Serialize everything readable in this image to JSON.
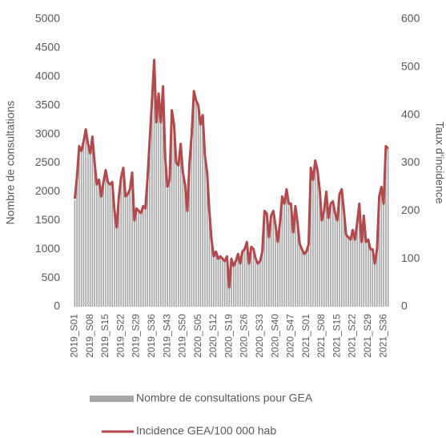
{
  "chart_data": {
    "type": "bar",
    "y_label": "Nombre de consultations",
    "y2_label": "Taux d'incidence",
    "categories": [
      "2019_S01",
      null,
      null,
      null,
      null,
      null,
      null,
      "2019_S08",
      null,
      null,
      null,
      null,
      null,
      null,
      "2019_S15",
      null,
      null,
      null,
      null,
      null,
      null,
      "2019_S22",
      null,
      null,
      null,
      null,
      null,
      null,
      "2019_S29",
      null,
      null,
      null,
      null,
      null,
      null,
      "2019_S36",
      null,
      null,
      null,
      null,
      null,
      null,
      "2019_S43",
      null,
      null,
      null,
      null,
      null,
      null,
      "2019_S50",
      null,
      null,
      null,
      null,
      null,
      null,
      "2020_S05",
      null,
      null,
      null,
      null,
      null,
      null,
      "2020_S12",
      null,
      null,
      null,
      null,
      null,
      null,
      "2020_S19",
      null,
      null,
      null,
      null,
      null,
      null,
      "2020_S26",
      null,
      null,
      null,
      null,
      null,
      null,
      "2020_S33",
      null,
      null,
      null,
      null,
      null,
      null,
      "2020_S40",
      null,
      null,
      null,
      null,
      null,
      null,
      "2020_S47",
      null,
      null,
      null,
      null,
      null,
      null,
      "2021_S01",
      null,
      null,
      null,
      null,
      null,
      null,
      "2021_S08",
      null,
      null,
      null,
      null,
      null,
      null,
      "2021_S15",
      null,
      null,
      null,
      null,
      null,
      null,
      "2021_S22",
      null,
      null,
      null,
      null,
      null,
      null,
      "2021_S29",
      null,
      null,
      null,
      null,
      null,
      null,
      "2021_S36",
      null,
      null
    ],
    "series": [
      {
        "name": "Nombre de consultations pour GEA",
        "type": "bar",
        "color": "#a6a6a6",
        "values": [
          1850,
          2250,
          2800,
          2700,
          2850,
          3050,
          2800,
          2650,
          2950,
          2500,
          2100,
          2200,
          1900,
          2150,
          2350,
          2150,
          2100,
          2150,
          1650,
          1350,
          1900,
          2250,
          2400,
          1900,
          1950,
          2050,
          2300,
          1500,
          1700,
          1650,
          1600,
          1750,
          1700,
          2250,
          2900,
          3550,
          4300,
          3200,
          3700,
          3200,
          3800,
          2550,
          2050,
          2200,
          3400,
          3150,
          2500,
          2450,
          2800,
          2300,
          2100,
          1650,
          2500,
          3000,
          3750,
          3550,
          3500,
          3150,
          3300,
          2600,
          2300,
          1650,
          1150,
          850,
          950,
          850,
          850,
          850,
          800,
          850,
          350,
          850,
          700,
          800,
          900,
          750,
          950,
          1000,
          1100,
          750,
          1050,
          1000,
          850,
          750,
          800,
          950,
          1650,
          1600,
          1200,
          1600,
          1650,
          1400,
          1100,
          1450,
          1900,
          1800,
          2050,
          1800,
          1800,
          1300,
          1750,
          1450,
          1100,
          1000,
          900,
          950,
          1100,
          2400,
          2200,
          2550,
          2350,
          2050,
          1500,
          1650,
          2000,
          1550,
          1800,
          1850,
          1600,
          1500,
          1950,
          2050,
          1650,
          1250,
          1200,
          1150,
          1350,
          1150,
          1450,
          1800,
          1100,
          1600,
          1100,
          1150,
          1000,
          1000,
          750,
          1000,
          1900,
          2100,
          1800,
          2800,
          2750
        ]
      },
      {
        "name": "Incidence GEA/100 000 hab",
        "type": "line",
        "axis": "y2",
        "color": "#b5484a",
        "values": [
          225,
          270,
          335,
          325,
          345,
          370,
          340,
          320,
          355,
          300,
          255,
          265,
          230,
          260,
          285,
          260,
          255,
          260,
          200,
          165,
          230,
          270,
          290,
          230,
          235,
          245,
          280,
          180,
          205,
          200,
          195,
          210,
          205,
          270,
          350,
          430,
          515,
          385,
          445,
          385,
          460,
          310,
          250,
          265,
          410,
          380,
          300,
          295,
          340,
          280,
          255,
          200,
          300,
          360,
          450,
          430,
          420,
          380,
          400,
          315,
          280,
          200,
          140,
          105,
          115,
          100,
          105,
          100,
          95,
          105,
          40,
          100,
          85,
          95,
          110,
          90,
          115,
          120,
          135,
          90,
          125,
          120,
          100,
          90,
          95,
          115,
          200,
          195,
          145,
          190,
          200,
          170,
          135,
          175,
          230,
          215,
          245,
          215,
          215,
          155,
          210,
          175,
          130,
          120,
          110,
          115,
          130,
          290,
          265,
          305,
          285,
          245,
          180,
          200,
          240,
          185,
          215,
          220,
          195,
          180,
          235,
          245,
          200,
          150,
          145,
          140,
          160,
          140,
          175,
          215,
          135,
          190,
          135,
          140,
          120,
          120,
          90,
          120,
          230,
          250,
          215,
          335,
          330
        ]
      }
    ],
    "ylim": [
      0,
      5000
    ],
    "yticks": [
      0,
      500,
      1000,
      1500,
      2000,
      2500,
      3000,
      3500,
      4000,
      4500,
      5000
    ],
    "y2lim": [
      0,
      600
    ],
    "y2ticks": [
      0,
      100,
      200,
      300,
      400,
      500,
      600
    ],
    "grid": false,
    "legend": "bottom"
  }
}
